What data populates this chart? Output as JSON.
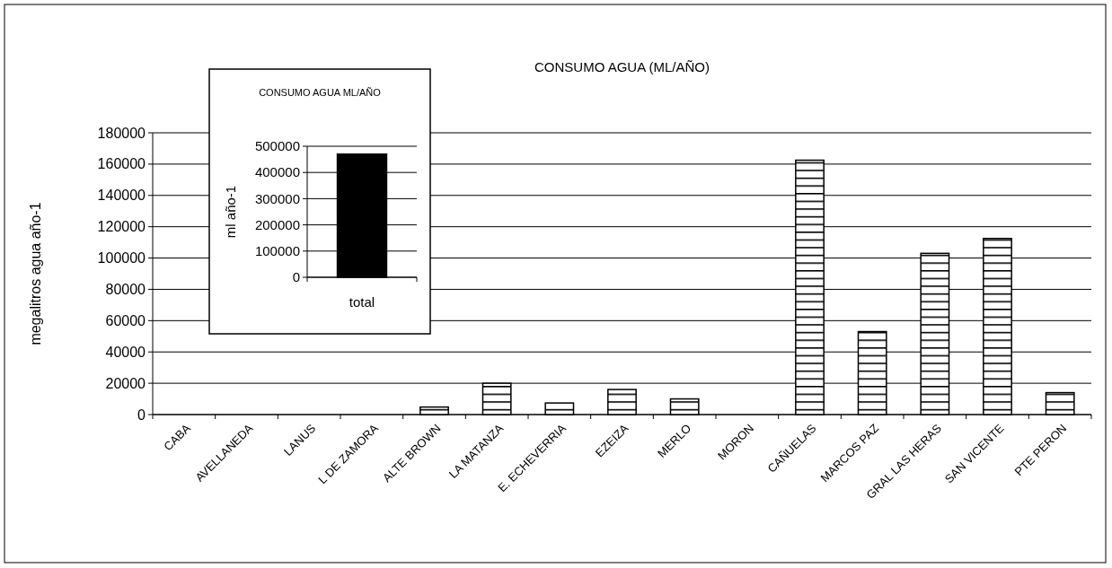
{
  "chart_data": [
    {
      "type": "bar",
      "title": "CONSUMO AGUA (ML/AÑO)",
      "ylabel": "megalitros agua año-1",
      "categories": [
        "CABA",
        "AVELLANEDA",
        "LANUS",
        "L DE ZAMORA",
        "ALTE BROWN",
        "LA MATANZA",
        "E. ECHEVERRIA",
        "EZEIZA",
        "MERLO",
        "MORON",
        "CAÑUELAS",
        "MARCOS PAZ",
        "GRAL LAS HERAS",
        "SAN VICENTE",
        "PTE PERON"
      ],
      "series": [
        {
          "color": "#000000",
          "values": [
            0,
            0,
            0,
            0,
            4800,
            20000,
            7400,
            16000,
            10000,
            0,
            162500,
            53000,
            103000,
            112500,
            14000
          ]
        }
      ],
      "ylim": [
        0,
        180000
      ],
      "yticks": [
        0,
        20000,
        40000,
        60000,
        80000,
        100000,
        120000,
        140000,
        160000,
        180000
      ],
      "grid": "y"
    },
    {
      "type": "bar",
      "title": "CONSUMO AGUA ML/AÑO",
      "ylabel": "ml año-1",
      "categories": [
        "total"
      ],
      "series": [
        {
          "color": "#000000",
          "values": [
            470000
          ]
        }
      ],
      "ylim": [
        0,
        500000
      ],
      "yticks": [
        0,
        100000,
        200000,
        300000,
        400000,
        500000
      ],
      "grid": "y"
    }
  ]
}
